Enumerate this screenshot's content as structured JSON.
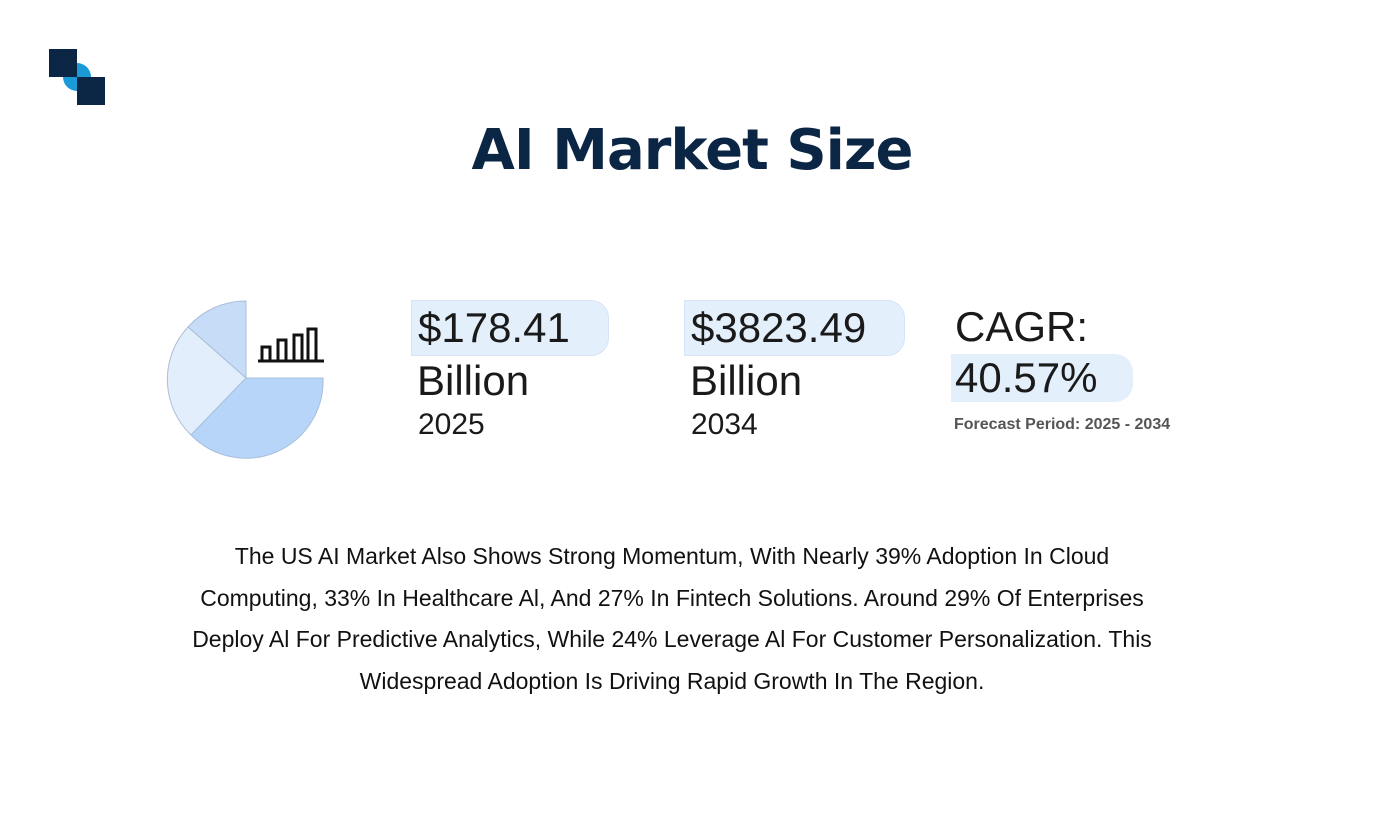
{
  "header": {
    "title": "AI Market Size"
  },
  "stats": [
    {
      "value": "$178.41",
      "unit": "Billion",
      "year": "2025"
    },
    {
      "value": "$3823.49",
      "unit": "Billion",
      "year": "2034"
    },
    {
      "label": "CAGR:",
      "value": "40.57%",
      "note": "Forecast Period: 2025 - 2034"
    }
  ],
  "description": {
    "lines": [
      "The US AI Market Also Shows Strong Momentum, With Nearly 39% Adoption In Cloud",
      "Computing, 33% In Healthcare Al, And 27% In Fintech Solutions. Around 29% Of Enterprises",
      "Deploy Al For Predictive Analytics, While 24% Leverage Al For Customer Personalization. This",
      "Widespread Adoption Is Driving Rapid Growth In The Region."
    ]
  }
}
